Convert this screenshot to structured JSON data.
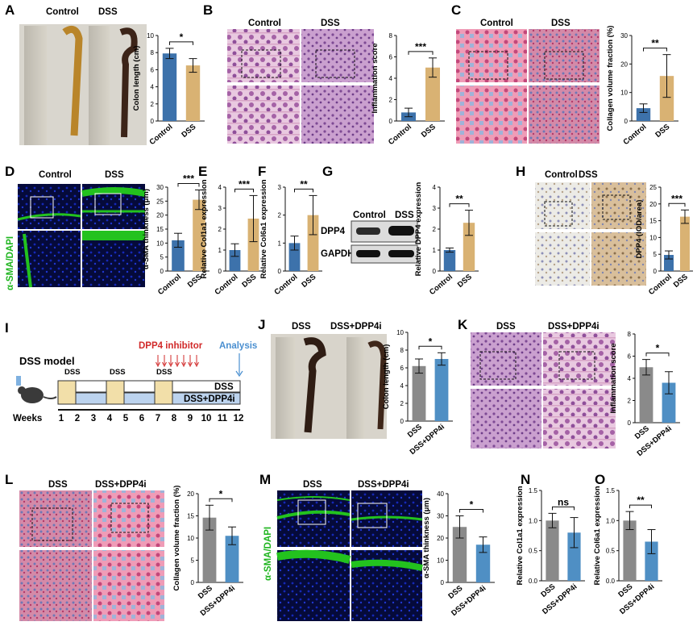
{
  "colors": {
    "control": "#3d72ab",
    "dss": "#d9b273",
    "dss_group": "#8a8a8a",
    "dpp4i": "#4f8fc4",
    "fluor_green": "#23c21e",
    "fluor_blue": "#1320a0"
  },
  "panels": {
    "A": {
      "letter": "A",
      "img_labels": [
        "Control",
        "DSS"
      ]
    },
    "B": {
      "letter": "B",
      "img_labels": [
        "Control",
        "DSS"
      ]
    },
    "C": {
      "letter": "C",
      "img_labels": [
        "Control",
        "DSS"
      ]
    },
    "D": {
      "letter": "D",
      "img_labels": [
        "Control",
        "DSS"
      ],
      "side_label": "α-SMA/DAPI"
    },
    "E": {
      "letter": "E"
    },
    "F": {
      "letter": "F"
    },
    "G": {
      "letter": "G",
      "blot_headers": [
        "Control",
        "DSS"
      ],
      "blot_rows": [
        "DPP4",
        "GAPDH"
      ]
    },
    "H": {
      "letter": "H",
      "img_labels": [
        "Control",
        "DSS"
      ]
    },
    "I": {
      "letter": "I",
      "model_title": "DSS model",
      "inhibitor_label": "DPP4 inhibitor",
      "analysis_label": "Analysis",
      "dss_marks": [
        "DSS",
        "DSS",
        "DSS"
      ],
      "bar_labels": [
        "DSS",
        "DSS+DPP4i"
      ],
      "weeks_label": "Weeks",
      "weeks": [
        "1",
        "2",
        "3",
        "4",
        "5",
        "6",
        "7",
        "8",
        "9",
        "10",
        "11",
        "12"
      ]
    },
    "J": {
      "letter": "J",
      "img_labels": [
        "DSS",
        "DSS+DPP4i"
      ]
    },
    "K": {
      "letter": "K",
      "img_labels": [
        "DSS",
        "DSS+DPP4i"
      ]
    },
    "L": {
      "letter": "L",
      "img_labels": [
        "DSS",
        "DSS+DPP4i"
      ]
    },
    "M": {
      "letter": "M",
      "img_labels": [
        "DSS",
        "DSS+DPP4i"
      ],
      "side_label": "α-SMA/DAPI"
    },
    "N": {
      "letter": "N"
    },
    "O": {
      "letter": "O"
    }
  },
  "chart_data": [
    {
      "id": "A",
      "type": "bar",
      "ylabel": "Colon length (cm)",
      "ylim": [
        0,
        10
      ],
      "ticks": [
        0,
        2,
        4,
        6,
        8,
        10
      ],
      "categories": [
        "Control",
        "DSS"
      ],
      "values": [
        7.9,
        6.5
      ],
      "errors": [
        0.6,
        0.8
      ],
      "significance": "*"
    },
    {
      "id": "B",
      "type": "bar",
      "ylabel": "Inflammation score",
      "ylim": [
        0,
        8
      ],
      "ticks": [
        0,
        2,
        4,
        6,
        8
      ],
      "categories": [
        "Control",
        "DSS"
      ],
      "values": [
        0.8,
        5.0
      ],
      "errors": [
        0.4,
        0.9
      ],
      "significance": "***"
    },
    {
      "id": "C",
      "type": "bar",
      "ylabel": "Collagen volume fraction (%)",
      "ylim": [
        0,
        30
      ],
      "ticks": [
        0,
        10,
        20,
        30
      ],
      "categories": [
        "Control",
        "DSS"
      ],
      "values": [
        4.5,
        15.8
      ],
      "errors": [
        1.5,
        7.5
      ],
      "significance": "**"
    },
    {
      "id": "D",
      "type": "bar",
      "ylabel": "α-SMA thinkness (μm)",
      "ylim": [
        0,
        30
      ],
      "ticks": [
        0,
        5,
        10,
        15,
        20,
        25,
        30
      ],
      "categories": [
        "Control",
        "DSS"
      ],
      "values": [
        11.0,
        25.5
      ],
      "errors": [
        2.5,
        3.5
      ],
      "significance": "***"
    },
    {
      "id": "E",
      "type": "bar",
      "ylabel": "Relative Col1a1 expression",
      "ylim": [
        0,
        4
      ],
      "ticks": [
        0,
        1,
        2,
        3,
        4
      ],
      "categories": [
        "Control",
        "DSS"
      ],
      "values": [
        1.0,
        2.5
      ],
      "errors": [
        0.3,
        1.1
      ],
      "significance": "***"
    },
    {
      "id": "F",
      "type": "bar",
      "ylabel": "Relative Col6a1 expression",
      "ylim": [
        0,
        3
      ],
      "ticks": [
        0,
        1,
        2,
        3
      ],
      "categories": [
        "Control",
        "DSS"
      ],
      "values": [
        1.0,
        2.0
      ],
      "errors": [
        0.25,
        0.7
      ],
      "significance": "**"
    },
    {
      "id": "G",
      "type": "bar",
      "ylabel": "Relative DPP4 expression",
      "ylim": [
        0,
        4
      ],
      "ticks": [
        0,
        1,
        2,
        3,
        4
      ],
      "categories": [
        "Control",
        "DSS"
      ],
      "values": [
        1.0,
        2.3
      ],
      "errors": [
        0.1,
        0.6
      ],
      "significance": "**"
    },
    {
      "id": "H",
      "type": "bar",
      "ylabel": "DPP4 (IOD/area)",
      "ylim": [
        0,
        25
      ],
      "ticks": [
        0,
        5,
        10,
        15,
        20,
        25
      ],
      "categories": [
        "Control",
        "DSS"
      ],
      "values": [
        4.8,
        16.2
      ],
      "errors": [
        1.2,
        2.0
      ],
      "significance": "***"
    },
    {
      "id": "J",
      "type": "bar",
      "ylabel": "Colon length (cm)",
      "ylim": [
        0,
        10
      ],
      "ticks": [
        0,
        2,
        4,
        6,
        8,
        10
      ],
      "categories": [
        "DSS",
        "DSS+DPP4i"
      ],
      "values": [
        6.2,
        7.0
      ],
      "errors": [
        0.8,
        0.7
      ],
      "significance": "*"
    },
    {
      "id": "K",
      "type": "bar",
      "ylabel": "Inflammation score",
      "ylim": [
        0,
        8
      ],
      "ticks": [
        0,
        2,
        4,
        6,
        8
      ],
      "categories": [
        "DSS",
        "DSS+DPP4i"
      ],
      "values": [
        5.0,
        3.6
      ],
      "errors": [
        0.7,
        1.0
      ],
      "significance": "*"
    },
    {
      "id": "L",
      "type": "bar",
      "ylabel": "Collagen volume fraction (%)",
      "ylim": [
        0,
        20
      ],
      "ticks": [
        0,
        5,
        10,
        15,
        20
      ],
      "categories": [
        "DSS",
        "DSS+DPP4i"
      ],
      "values": [
        14.6,
        10.5
      ],
      "errors": [
        2.8,
        2.0
      ],
      "significance": "*"
    },
    {
      "id": "M",
      "type": "bar",
      "ylabel": "α-SMA thinkness (μm)",
      "ylim": [
        0,
        40
      ],
      "ticks": [
        0,
        10,
        20,
        30,
        40
      ],
      "categories": [
        "DSS",
        "DSS+DPP4i"
      ],
      "values": [
        25.0,
        17.0
      ],
      "errors": [
        5.0,
        3.5
      ],
      "significance": "*"
    },
    {
      "id": "N",
      "type": "bar",
      "ylabel": "Relative Col1a1 expression",
      "ylim": [
        0,
        1.5
      ],
      "ticks": [
        0.0,
        0.5,
        1.0,
        1.5
      ],
      "categories": [
        "DSS",
        "DSS+DPP4i"
      ],
      "values": [
        1.0,
        0.8
      ],
      "errors": [
        0.12,
        0.25
      ],
      "significance": "ns"
    },
    {
      "id": "O",
      "type": "bar",
      "ylabel": "Relative Col6a1 expression",
      "ylim": [
        0,
        1.5
      ],
      "ticks": [
        0.0,
        0.5,
        1.0,
        1.5
      ],
      "categories": [
        "DSS",
        "DSS+DPP4i"
      ],
      "values": [
        1.0,
        0.65
      ],
      "errors": [
        0.15,
        0.2
      ],
      "significance": "**"
    }
  ]
}
